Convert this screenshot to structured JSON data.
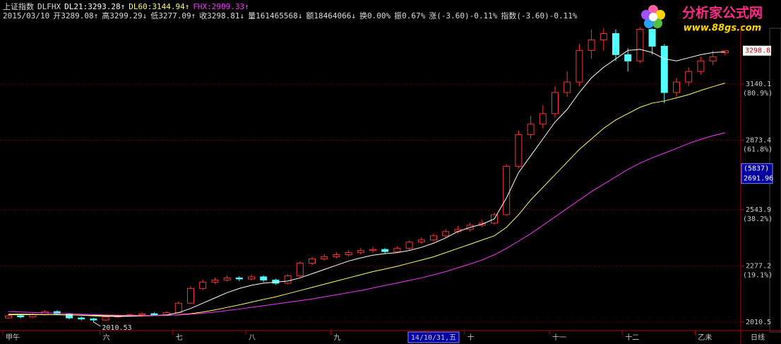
{
  "header": {
    "name": "上证指数",
    "formula": "DLFHX",
    "quote": [
      "2015/03/10",
      "开3289.08↑",
      "高3299.29↓",
      "低3277.09↑",
      "收3298.81↓",
      "量161465568↓",
      "额18464066↓",
      "换0.00%",
      "振0.67%",
      "涨(-3.60)-0.11%",
      "指数(-3.60)-0.11%"
    ]
  },
  "logo": {
    "title": "分析家公式网",
    "url": "www.88gs.com"
  },
  "chart_data": {
    "type": "candlestick",
    "categories": [
      "甲午",
      null,
      null,
      null,
      null,
      null,
      null,
      null,
      "六",
      null,
      null,
      null,
      null,
      null,
      "七",
      null,
      null,
      null,
      null,
      null,
      "八",
      null,
      null,
      null,
      null,
      null,
      null,
      "九",
      null,
      null,
      null,
      null,
      null,
      null,
      null,
      "14/10/31,五",
      null,
      null,
      "十",
      null,
      null,
      null,
      null,
      null,
      null,
      "十一",
      null,
      null,
      null,
      null,
      null,
      "十二",
      null,
      null,
      null,
      null,
      null,
      "乙未",
      null,
      null
    ],
    "open": [
      2030,
      2040,
      2035,
      2045,
      2060,
      2050,
      2030,
      2025,
      2020,
      2035,
      2040,
      2045,
      2050,
      2045,
      2055,
      2100,
      2170,
      2200,
      2210,
      2220,
      2215,
      2225,
      2210,
      2195,
      2230,
      2290,
      2310,
      2320,
      2330,
      2340,
      2350,
      2355,
      2345,
      2360,
      2390,
      2400,
      2420,
      2440,
      2450,
      2470,
      2480,
      2520,
      2750,
      2900,
      2950,
      3000,
      3100,
      3150,
      3300,
      3350,
      3380,
      3280,
      3250,
      3400,
      3320,
      3100,
      3150,
      3200,
      3250,
      3289.08
    ],
    "high": [
      2048,
      2046,
      2052,
      2068,
      2066,
      2054,
      2036,
      2030,
      2040,
      2046,
      2052,
      2056,
      2056,
      2062,
      2108,
      2180,
      2212,
      2222,
      2232,
      2228,
      2236,
      2232,
      2216,
      2238,
      2298,
      2320,
      2332,
      2342,
      2352,
      2362,
      2368,
      2362,
      2370,
      2398,
      2412,
      2430,
      2452,
      2468,
      2482,
      2496,
      2530,
      2760,
      2920,
      2990,
      3040,
      3130,
      3200,
      3330,
      3400,
      3406,
      3400,
      3310,
      3410,
      3405,
      3330,
      3170,
      3220,
      3270,
      3300,
      3299.29
    ],
    "low": [
      2025,
      2028,
      2030,
      2040,
      2044,
      2024,
      2018,
      2010.53,
      2016,
      2030,
      2036,
      2040,
      2040,
      2040,
      2050,
      2096,
      2162,
      2192,
      2202,
      2205,
      2208,
      2200,
      2188,
      2190,
      2224,
      2282,
      2302,
      2312,
      2322,
      2332,
      2340,
      2336,
      2338,
      2352,
      2382,
      2392,
      2412,
      2430,
      2440,
      2462,
      2472,
      2515,
      2740,
      2880,
      2930,
      2980,
      3080,
      3130,
      3260,
      3300,
      3250,
      3200,
      3240,
      3280,
      3049,
      3080,
      3130,
      3185,
      3230,
      3277.09
    ],
    "close": [
      2040,
      2035,
      2045,
      2060,
      2050,
      2030,
      2025,
      2020,
      2035,
      2040,
      2045,
      2050,
      2045,
      2055,
      2100,
      2170,
      2200,
      2210,
      2220,
      2215,
      2225,
      2210,
      2195,
      2230,
      2290,
      2310,
      2320,
      2330,
      2340,
      2350,
      2355,
      2345,
      2360,
      2390,
      2400,
      2420,
      2440,
      2450,
      2470,
      2480,
      2520,
      2750,
      2900,
      2950,
      3000,
      3100,
      3150,
      3300,
      3350,
      3380,
      3280,
      3250,
      3400,
      3320,
      3100,
      3150,
      3200,
      3250,
      3270,
      3298.81
    ],
    "up_color": "#ff3232",
    "down_color": "#54ffff",
    "series": [
      {
        "name": "DL21:3293.28↑",
        "color": "#ffffff",
        "values": [
          2045,
          2045,
          2046,
          2046,
          2046,
          2045,
          2043,
          2040,
          2038,
          2037,
          2038,
          2040,
          2042,
          2044,
          2055,
          2075,
          2100,
          2125,
          2150,
          2170,
          2185,
          2195,
          2200,
          2205,
          2220,
          2240,
          2260,
          2280,
          2300,
          2315,
          2328,
          2335,
          2340,
          2350,
          2365,
          2385,
          2410,
          2440,
          2460,
          2475,
          2500,
          2600,
          2720,
          2800,
          2880,
          2960,
          3020,
          3100,
          3170,
          3220,
          3260,
          3300,
          3305,
          3290,
          3260,
          3250,
          3265,
          3280,
          3290,
          3293.28
        ]
      },
      {
        "name": "DL60:3144.94↑",
        "color": "#ffff55",
        "values": [
          2048,
          2048,
          2047,
          2046,
          2045,
          2044,
          2043,
          2042,
          2041,
          2040,
          2040,
          2040,
          2041,
          2042,
          2045,
          2050,
          2058,
          2068,
          2080,
          2092,
          2105,
          2118,
          2130,
          2145,
          2160,
          2175,
          2190,
          2205,
          2220,
          2235,
          2250,
          2262,
          2275,
          2290,
          2305,
          2320,
          2340,
          2360,
          2380,
          2400,
          2420,
          2460,
          2520,
          2590,
          2650,
          2710,
          2770,
          2830,
          2880,
          2930,
          2970,
          3000,
          3030,
          3050,
          3060,
          3075,
          3090,
          3110,
          3128,
          3144.94
        ]
      },
      {
        "name": "FHX:2909.33↑",
        "color": "#ff33ff",
        "values": [
          2060,
          2058,
          2056,
          2054,
          2052,
          2050,
          2048,
          2046,
          2044,
          2043,
          2042,
          2042,
          2042,
          2043,
          2044,
          2048,
          2052,
          2058,
          2065,
          2072,
          2080,
          2088,
          2096,
          2104,
          2112,
          2120,
          2130,
          2140,
          2150,
          2160,
          2172,
          2184,
          2196,
          2208,
          2220,
          2235,
          2250,
          2268,
          2286,
          2305,
          2330,
          2360,
          2395,
          2430,
          2470,
          2510,
          2550,
          2590,
          2630,
          2665,
          2700,
          2735,
          2765,
          2790,
          2812,
          2835,
          2858,
          2878,
          2895,
          2909.33
        ]
      }
    ],
    "ylim": [
      1980,
      3422
    ],
    "yticks": [
      3140.1,
      2873.4,
      2543.9,
      2277.2,
      2010.5
    ],
    "fib_labels": [
      "(80.9%)",
      "(61.8%)",
      "(38.2%)",
      "(19.1%)"
    ],
    "last_label": {
      "value": 3298.8,
      "label": "3298.8"
    },
    "cursor": {
      "value": 2691.96,
      "volume_label": "(5837)"
    },
    "period": "日线",
    "grid": true
  }
}
